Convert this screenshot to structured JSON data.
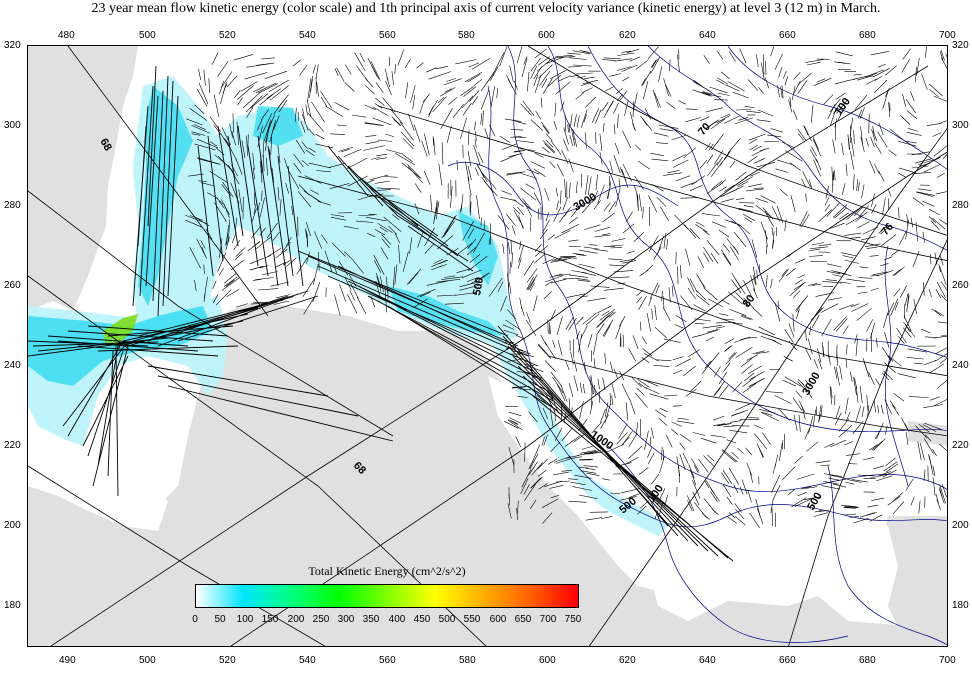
{
  "title": "23 year mean flow kinetic energy (color scale) and 1th principal axis of current velocity variance (kinetic energy) at level 3 (12 m) in March.",
  "x_axis": {
    "top_ticks": [
      "480",
      "500",
      "520",
      "540",
      "560",
      "580",
      "600",
      "620",
      "640",
      "660",
      "680",
      "700"
    ],
    "bottom_ticks": [
      "490",
      "500",
      "520",
      "540",
      "560",
      "580",
      "600",
      "620",
      "640",
      "660",
      "680",
      "700"
    ]
  },
  "y_axis": {
    "left_ticks": [
      "320",
      "300",
      "280",
      "260",
      "240",
      "220",
      "200",
      "180"
    ],
    "right_ticks": [
      "320",
      "300",
      "280",
      "260",
      "240",
      "220",
      "200",
      "180"
    ]
  },
  "contour_labels": [
    "68",
    "68",
    "70",
    "76",
    "3000",
    "100",
    "80",
    "3000",
    "1000",
    "500",
    "100",
    "500",
    "500"
  ],
  "colorbar": {
    "title": "Total Kinetic Energy (cm^2/s^2)",
    "ticks": [
      "0",
      "50",
      "100",
      "150",
      "200",
      "250",
      "300",
      "350",
      "400",
      "450",
      "500",
      "550",
      "600",
      "650",
      "700",
      "750"
    ],
    "colors": [
      "#ffffff",
      "#00e5ff",
      "#00ff80",
      "#00ff00",
      "#80ff00",
      "#ffff00",
      "#ffb000",
      "#ff6000",
      "#ff0000"
    ]
  },
  "colors": {
    "land": "#e0e0e0",
    "bathymetry": "#00008b",
    "ellipse_axes": "#000000",
    "energy_low": "#bdf3fb",
    "energy_mid": "#38d9f0",
    "energy_high": "#7ddc1f"
  }
}
